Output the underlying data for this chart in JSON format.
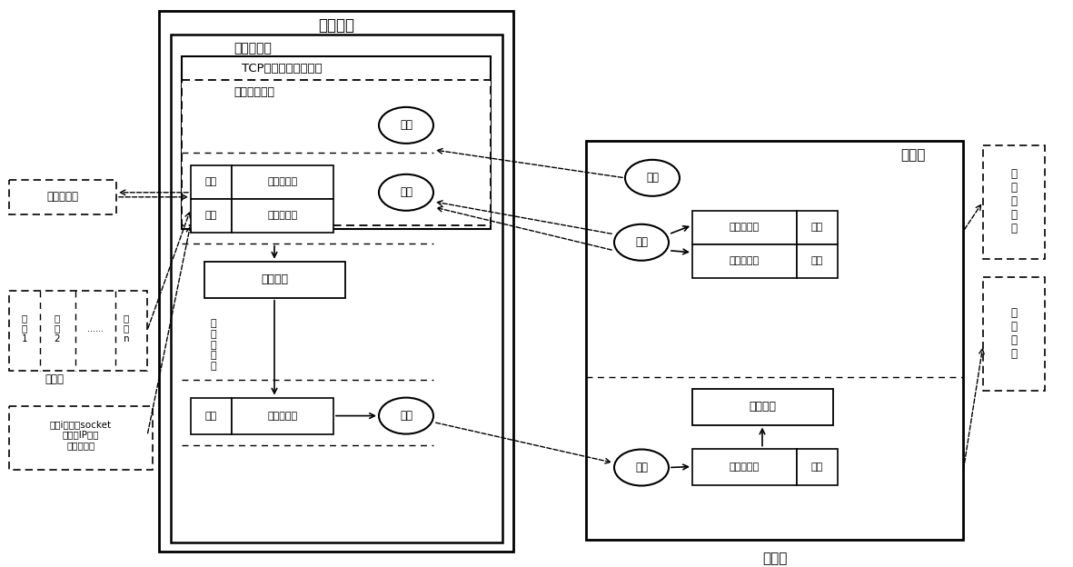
{
  "bg_color": "#ffffff",
  "fig_w": 11.81,
  "fig_h": 6.24,
  "labels": {
    "fu_wu_dai_li": "服务代理",
    "zhu_gong_zuo": "主工作线程",
    "tcp_fuw": "TCP服务端、完成端口",
    "tong_xin_jie": "通信接口线程",
    "lian_jie_circle": "连接",
    "shou_circle": "接收",
    "fan_hui_circle": "返回",
    "yan_zheng1": "验证",
    "ren_zheng_bao": "认证数据包",
    "yan_zheng2": "验证",
    "qing_qiu_bao": "请求数据包",
    "xiang_ying": "响应处理",
    "feng_zhuang_fan": "封装",
    "fan_hui_bao": "返回数据包",
    "tong_xin_fu": "通信字符串",
    "lian_jie_chi_label": "连接池",
    "lian_1": "连\n接\n1",
    "lian_2": "连\n接\n2",
    "lian_dots": "......",
    "lian_n": "连\n接\nn",
    "lian_info": "连接i包括了socket\n客户端IP地址\n消息序列号",
    "xiao_xi_xu": "消\n息\n序\n列\n号",
    "ke_hu_duan_label": "客户端",
    "ke_hu_ji_label": "客户机",
    "lian_jie_c2": "连接",
    "fa_song_c": "发送",
    "shou_c": "接收",
    "ren_zheng_bao2": "认证数据包",
    "feng_zhuang2": "封装",
    "qing_qiu_bao2": "请求数据包",
    "feng_zhuang3": "封装",
    "que_ren": "确认处理",
    "fan_hui_bao2": "返回数据包",
    "yan_zheng3": "验证",
    "tong_xin_fu2": "通\n信\n字\n符\n串",
    "lian_jie_biao2": "连\n接\n变\n量"
  }
}
